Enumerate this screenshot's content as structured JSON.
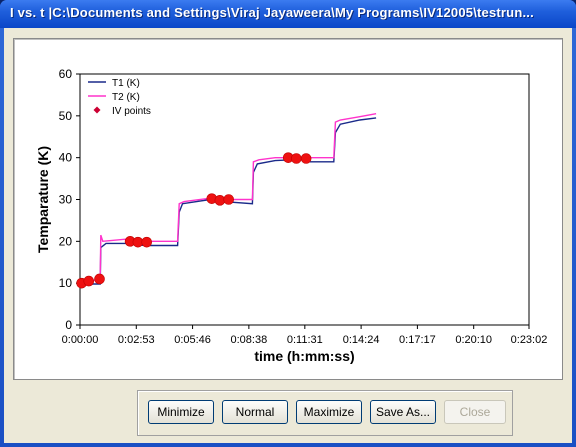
{
  "window": {
    "title": "I vs. t   |C:\\Documents and Settings\\Viraj Jayaweera\\My Programs\\IV12005\\testrun..."
  },
  "buttons": {
    "minimize": "Minimize",
    "normal": "Normal",
    "maximize": "Maximize",
    "save_as": "Save As...",
    "close": "Close"
  },
  "colors": {
    "title_bar": "#1f5fdc",
    "series_t1": "#1a2a8a",
    "series_t2": "#ff33cc",
    "iv_points": "#ee1111"
  },
  "chart_data": {
    "type": "line",
    "xlabel": "time (h:mm:ss)",
    "ylabel": "Temparature (K)",
    "ylim": [
      0,
      60
    ],
    "yticks": [
      0,
      10,
      20,
      30,
      40,
      50,
      60
    ],
    "xlim_seconds": [
      0,
      1380
    ],
    "xticks_seconds": [
      0,
      173,
      346,
      519,
      691,
      864,
      1037,
      1210,
      1382
    ],
    "xtick_labels": [
      "0:00:00",
      "0:02:53",
      "0:05:46",
      "0:08:38",
      "0:11:31",
      "0:14:24",
      "0:17:17",
      "0:20:10",
      "0:23:02"
    ],
    "grid": false,
    "legend": "top-left",
    "series": [
      {
        "name": "T1 (K)",
        "points": [
          [
            0,
            9.8
          ],
          [
            30,
            9.8
          ],
          [
            62,
            9.8
          ],
          [
            64,
            18.5
          ],
          [
            80,
            19.5
          ],
          [
            140,
            19.5
          ],
          [
            200,
            19.0
          ],
          [
            300,
            19.0
          ],
          [
            305,
            27.0
          ],
          [
            315,
            29.0
          ],
          [
            400,
            30.0
          ],
          [
            440,
            29.5
          ],
          [
            530,
            29.0
          ],
          [
            533,
            36.5
          ],
          [
            545,
            38.5
          ],
          [
            600,
            39.3
          ],
          [
            650,
            39.5
          ],
          [
            690,
            39.5
          ],
          [
            700,
            39.0
          ],
          [
            780,
            39.0
          ],
          [
            785,
            46.0
          ],
          [
            800,
            48.0
          ],
          [
            860,
            49.0
          ],
          [
            910,
            49.5
          ]
        ]
      },
      {
        "name": "T2 (K)",
        "points": [
          [
            0,
            10.0
          ],
          [
            30,
            10.5
          ],
          [
            62,
            11.0
          ],
          [
            64,
            21.5
          ],
          [
            70,
            20.0
          ],
          [
            140,
            20.5
          ],
          [
            200,
            20.0
          ],
          [
            300,
            20.0
          ],
          [
            305,
            29.0
          ],
          [
            320,
            29.5
          ],
          [
            400,
            30.3
          ],
          [
            440,
            30.0
          ],
          [
            530,
            30.0
          ],
          [
            533,
            39.0
          ],
          [
            550,
            39.5
          ],
          [
            600,
            40.0
          ],
          [
            700,
            40.0
          ],
          [
            780,
            40.0
          ],
          [
            785,
            48.5
          ],
          [
            800,
            49.0
          ],
          [
            860,
            49.8
          ],
          [
            910,
            50.5
          ]
        ]
      }
    ],
    "iv_points": {
      "name": "IV points",
      "points": [
        [
          5,
          10.0
        ],
        [
          27,
          10.5
        ],
        [
          60,
          11.0
        ],
        [
          154,
          20.0
        ],
        [
          178,
          19.8
        ],
        [
          205,
          19.8
        ],
        [
          405,
          30.2
        ],
        [
          430,
          29.8
        ],
        [
          457,
          30.0
        ],
        [
          640,
          40.0
        ],
        [
          665,
          39.8
        ],
        [
          695,
          39.8
        ]
      ]
    }
  }
}
